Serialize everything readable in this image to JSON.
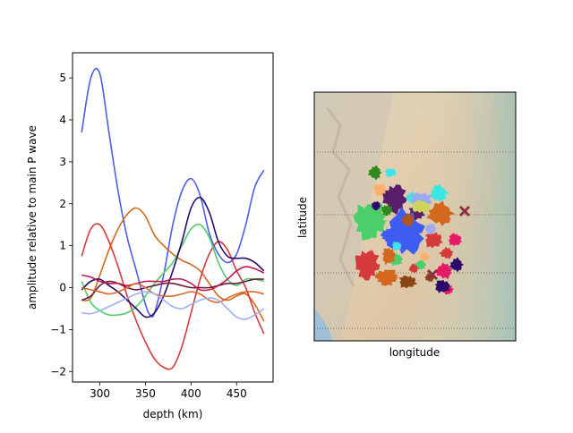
{
  "chart_data": [
    {
      "type": "line",
      "xlabel": "depth (km)",
      "ylabel": "amplitude relative to main P wave",
      "xlim": [
        270,
        490
      ],
      "ylim": [
        -2.25,
        5.6
      ],
      "xticks": [
        300,
        350,
        400,
        450
      ],
      "yticks": [
        -2,
        -1,
        0,
        1,
        2,
        3,
        4,
        5
      ],
      "grid": false,
      "series": [
        {
          "color": "#4a5ee8",
          "x": [
            280,
            290,
            300,
            310,
            320,
            330,
            340,
            350,
            355,
            360,
            370,
            380,
            390,
            400,
            410,
            420,
            430,
            440,
            450,
            460,
            470,
            480
          ],
          "y": [
            3.7,
            5.0,
            5.1,
            3.7,
            2.3,
            1.2,
            0.4,
            -0.4,
            -0.65,
            -0.6,
            0.3,
            1.5,
            2.3,
            2.6,
            2.2,
            1.3,
            0.8,
            0.6,
            0.8,
            1.5,
            2.4,
            2.8
          ]
        },
        {
          "color": "#d2691e",
          "x": [
            280,
            290,
            300,
            310,
            320,
            330,
            340,
            350,
            360,
            370,
            380,
            390,
            400,
            410,
            420,
            430,
            440,
            450,
            460,
            470,
            480
          ],
          "y": [
            -0.3,
            -0.25,
            0.3,
            0.9,
            1.4,
            1.75,
            1.9,
            1.7,
            1.25,
            1.0,
            0.8,
            0.65,
            0.55,
            0.4,
            0.1,
            -0.2,
            -0.3,
            -0.2,
            -0.15,
            -0.4,
            -0.8
          ]
        },
        {
          "color": "#d63a3a",
          "x": [
            280,
            290,
            300,
            310,
            320,
            330,
            340,
            350,
            360,
            370,
            380,
            390,
            400,
            410,
            420,
            430,
            440,
            450,
            460,
            470,
            480
          ],
          "y": [
            0.75,
            1.4,
            1.5,
            1.1,
            0.5,
            -0.2,
            -0.8,
            -1.3,
            -1.7,
            -1.9,
            -1.9,
            -1.4,
            -0.6,
            0.2,
            0.8,
            1.1,
            0.9,
            0.4,
            0.0,
            -0.6,
            -1.1
          ]
        },
        {
          "color": "#4ccf6a",
          "x": [
            280,
            290,
            300,
            310,
            320,
            330,
            340,
            350,
            360,
            370,
            380,
            390,
            400,
            410,
            420,
            430,
            440,
            450,
            460,
            470,
            480
          ],
          "y": [
            0.15,
            -0.35,
            -0.55,
            -0.65,
            -0.65,
            -0.6,
            -0.45,
            -0.2,
            0.1,
            0.35,
            0.6,
            1.0,
            1.4,
            1.5,
            1.2,
            0.6,
            0.2,
            0.05,
            0.2,
            0.2,
            0.15
          ]
        },
        {
          "color": "#2c0a6b",
          "x": [
            280,
            290,
            300,
            310,
            320,
            330,
            340,
            350,
            360,
            370,
            380,
            390,
            400,
            410,
            420,
            430,
            440,
            450,
            460,
            470,
            480
          ],
          "y": [
            -0.05,
            0.15,
            0.2,
            0.05,
            -0.1,
            -0.3,
            -0.5,
            -0.7,
            -0.6,
            -0.2,
            0.4,
            1.1,
            1.9,
            2.15,
            1.8,
            1.1,
            0.75,
            0.7,
            0.7,
            0.6,
            0.4
          ]
        },
        {
          "color": "#6b1a3a",
          "x": [
            280,
            290,
            300,
            310,
            320,
            330,
            340,
            350,
            360,
            370,
            380,
            390,
            400,
            410,
            420,
            430,
            440,
            450,
            460,
            470,
            480
          ],
          "y": [
            -0.3,
            -0.2,
            0.05,
            0.15,
            0.1,
            0.0,
            -0.05,
            0.0,
            0.05,
            0.1,
            0.1,
            0.05,
            0.0,
            0.0,
            0.0,
            0.05,
            0.1,
            0.1,
            0.15,
            0.2,
            0.2
          ]
        },
        {
          "color": "#c0184a",
          "x": [
            280,
            290,
            300,
            310,
            320,
            330,
            340,
            350,
            360,
            370,
            380,
            390,
            400,
            410,
            420,
            430,
            440,
            450,
            460,
            470,
            480
          ],
          "y": [
            0.3,
            0.25,
            0.15,
            0.1,
            0.1,
            0.05,
            0.1,
            0.15,
            0.15,
            0.15,
            0.2,
            0.2,
            0.1,
            -0.05,
            -0.05,
            0.05,
            0.2,
            0.4,
            0.5,
            0.45,
            0.35
          ]
        },
        {
          "color": "#d66a2a",
          "x": [
            280,
            290,
            300,
            310,
            320,
            330,
            340,
            350,
            360,
            370,
            380,
            390,
            400,
            410,
            420,
            430,
            440,
            450,
            460,
            470,
            480
          ],
          "y": [
            0.0,
            -0.05,
            -0.1,
            -0.15,
            -0.1,
            0.0,
            0.1,
            0.0,
            -0.15,
            -0.2,
            -0.2,
            -0.15,
            -0.1,
            -0.15,
            -0.3,
            -0.35,
            -0.25,
            -0.15,
            -0.1,
            -0.1,
            -0.15
          ]
        },
        {
          "color": "#a0b0ee",
          "x": [
            280,
            290,
            300,
            310,
            320,
            330,
            340,
            350,
            360,
            370,
            380,
            390,
            400,
            410,
            420,
            430,
            440,
            450,
            460,
            470,
            480
          ],
          "y": [
            -0.6,
            -0.62,
            -0.55,
            -0.45,
            -0.35,
            -0.25,
            -0.15,
            -0.1,
            -0.15,
            -0.3,
            -0.45,
            -0.5,
            -0.4,
            -0.3,
            -0.25,
            -0.3,
            -0.5,
            -0.7,
            -0.75,
            -0.65,
            -0.5
          ]
        }
      ]
    },
    {
      "type": "map",
      "xlabel": "longitude",
      "ylabel": "latitude",
      "grid": "dotted latitude lines",
      "clusters": [
        {
          "color": "#4ccf6a",
          "shape": "blob"
        },
        {
          "color": "#3e5cf2",
          "shape": "blob"
        },
        {
          "color": "#5a1f6b",
          "shape": "blob"
        },
        {
          "color": "#d63a3a",
          "shape": "blob"
        },
        {
          "color": "#d2691e",
          "shape": "blob"
        },
        {
          "color": "#3ce6e6",
          "shape": "blob"
        },
        {
          "color": "#9ca8f0",
          "shape": "blob"
        },
        {
          "color": "#cfd45a",
          "shape": "blob"
        },
        {
          "color": "#b2541e",
          "shape": "blob"
        },
        {
          "color": "#e61a66",
          "shape": "blob"
        },
        {
          "color": "#2c0a6b",
          "shape": "blob"
        },
        {
          "color": "#8b4513",
          "shape": "blob"
        },
        {
          "color": "#2f8a1f",
          "shape": "blob"
        },
        {
          "color": "#ffb06a",
          "shape": "blob"
        },
        {
          "color": "#8c3040",
          "shape": "x"
        }
      ]
    }
  ]
}
